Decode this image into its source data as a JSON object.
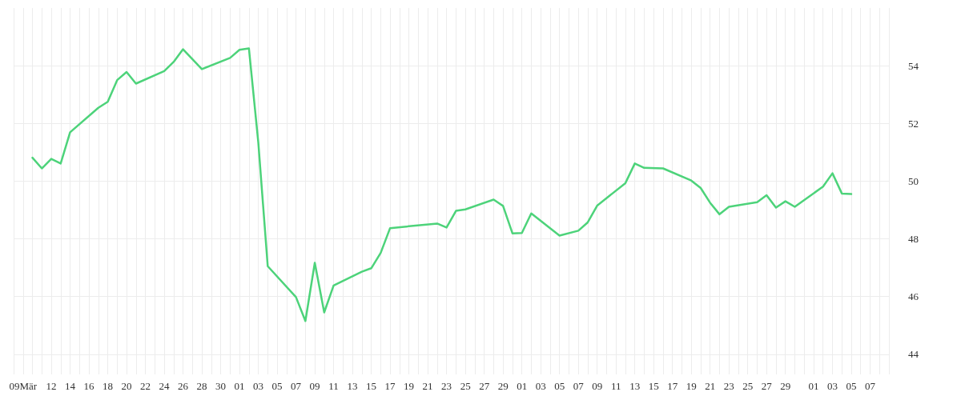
{
  "chart_data": {
    "type": "line",
    "x": [
      "--03-10",
      "--03-11",
      "--03-12",
      "--03-13",
      "--03-14",
      "--03-17",
      "--03-18",
      "--03-19",
      "--03-20",
      "--03-21",
      "--03-24",
      "--03-25",
      "--03-26",
      "--03-28",
      "--03-31",
      "--04-01",
      "--04-02",
      "--04-03",
      "--04-04",
      "--04-07",
      "--04-08",
      "--04-09",
      "--04-10",
      "--04-11",
      "--04-14",
      "--04-15",
      "--04-16",
      "--04-17",
      "--04-22",
      "--04-23",
      "--04-24",
      "--04-25",
      "--04-28",
      "--04-29",
      "--04-30",
      "--05-01",
      "--05-02",
      "--05-05",
      "--05-07",
      "--05-08",
      "--05-09",
      "--05-12",
      "--05-13",
      "--05-14",
      "--05-16",
      "--05-19",
      "--05-20",
      "--05-21",
      "--05-22",
      "--05-23",
      "--05-26",
      "--05-27",
      "--05-28",
      "--05-29",
      "--05-30",
      "--06-02",
      "--06-03",
      "--06-04",
      "--06-05"
    ],
    "series": [
      {
        "color": "#4dd37a",
        "values": [
          50.81,
          50.44,
          50.77,
          50.61,
          51.69,
          52.54,
          52.75,
          53.5,
          53.78,
          53.38,
          53.81,
          54.13,
          54.57,
          53.88,
          54.27,
          54.55,
          54.6,
          51.33,
          47.05,
          45.98,
          45.15,
          47.17,
          45.45,
          46.38,
          46.86,
          46.98,
          47.51,
          48.37,
          48.53,
          48.39,
          48.97,
          49.02,
          49.36,
          49.14,
          48.19,
          48.2,
          48.88,
          48.11,
          48.28,
          48.57,
          49.15,
          49.93,
          50.61,
          50.46,
          50.44,
          50.02,
          49.76,
          49.25,
          48.85,
          49.11,
          49.27,
          49.51,
          49.08,
          49.3,
          49.11,
          49.81,
          50.27,
          49.57,
          49.55
        ]
      }
    ],
    "xlim": [
      "--03-08",
      "--06-09"
    ],
    "xticks": [
      {
        "value": "--03-09",
        "label": "09Mär"
      },
      {
        "value": "--03-12",
        "label": "12"
      },
      {
        "value": "--03-14",
        "label": "14"
      },
      {
        "value": "--03-16",
        "label": "16"
      },
      {
        "value": "--03-18",
        "label": "18"
      },
      {
        "value": "--03-20",
        "label": "20"
      },
      {
        "value": "--03-22",
        "label": "22"
      },
      {
        "value": "--03-24",
        "label": "24"
      },
      {
        "value": "--03-26",
        "label": "26"
      },
      {
        "value": "--03-28",
        "label": "28"
      },
      {
        "value": "--03-30",
        "label": "30"
      },
      {
        "value": "--04-01",
        "label": "01"
      },
      {
        "value": "--04-03",
        "label": "03"
      },
      {
        "value": "--04-05",
        "label": "05"
      },
      {
        "value": "--04-07",
        "label": "07"
      },
      {
        "value": "--04-09",
        "label": "09"
      },
      {
        "value": "--04-11",
        "label": "11"
      },
      {
        "value": "--04-13",
        "label": "13"
      },
      {
        "value": "--04-15",
        "label": "15"
      },
      {
        "value": "--04-17",
        "label": "17"
      },
      {
        "value": "--04-19",
        "label": "19"
      },
      {
        "value": "--04-21",
        "label": "21"
      },
      {
        "value": "--04-23",
        "label": "23"
      },
      {
        "value": "--04-25",
        "label": "25"
      },
      {
        "value": "--04-27",
        "label": "27"
      },
      {
        "value": "--04-29",
        "label": "29"
      },
      {
        "value": "--05-01",
        "label": "01"
      },
      {
        "value": "--05-03",
        "label": "03"
      },
      {
        "value": "--05-05",
        "label": "05"
      },
      {
        "value": "--05-07",
        "label": "07"
      },
      {
        "value": "--05-09",
        "label": "09"
      },
      {
        "value": "--05-11",
        "label": "11"
      },
      {
        "value": "--05-13",
        "label": "13"
      },
      {
        "value": "--05-15",
        "label": "15"
      },
      {
        "value": "--05-17",
        "label": "17"
      },
      {
        "value": "--05-19",
        "label": "19"
      },
      {
        "value": "--05-21",
        "label": "21"
      },
      {
        "value": "--05-23",
        "label": "23"
      },
      {
        "value": "--05-25",
        "label": "25"
      },
      {
        "value": "--05-27",
        "label": "27"
      },
      {
        "value": "--05-29",
        "label": "29"
      },
      {
        "value": "--06-01",
        "label": "01"
      },
      {
        "value": "--06-03",
        "label": "03"
      },
      {
        "value": "--06-05",
        "label": "05"
      },
      {
        "value": "--06-07",
        "label": "07"
      }
    ],
    "ylim": [
      43.3,
      56
    ],
    "yticks": [
      44,
      46,
      48,
      50,
      52,
      54
    ],
    "grid": true,
    "marker": "none",
    "line_style": "solid"
  }
}
